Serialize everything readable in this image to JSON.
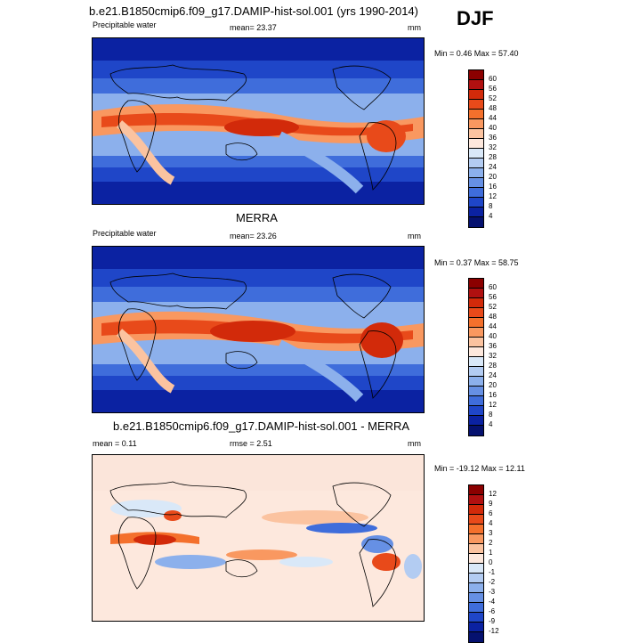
{
  "season": "DJF",
  "panels": [
    {
      "title": "b.e21.B1850cmip6.f09_g17.DAMIP-hist-sol.001 (yrs 1990-2014)",
      "variable": "Precipitable water",
      "mean_text": "mean=  23.37",
      "units": "mm",
      "minmax_text": "Min =   0.46 Max =  57.40",
      "legend_labels": [
        "60",
        "56",
        "52",
        "48",
        "44",
        "40",
        "36",
        "32",
        "28",
        "24",
        "20",
        "16",
        "12",
        "8",
        "4"
      ],
      "legend_colors": [
        "#8b0000",
        "#b01010",
        "#d22a0a",
        "#e84a1a",
        "#f4702c",
        "#f99860",
        "#fbc3a0",
        "#fde8dd",
        "#d9e8f8",
        "#b3ccf2",
        "#8cb0ec",
        "#6690e4",
        "#3f6ddb",
        "#1f46c8",
        "#0b22a2",
        "#05116f"
      ]
    },
    {
      "title": "MERRA",
      "variable": "Precipitable water",
      "mean_text": "mean=  23.26",
      "units": "mm",
      "minmax_text": "Min =   0.37 Max =  58.75",
      "legend_labels": [
        "60",
        "56",
        "52",
        "48",
        "44",
        "40",
        "36",
        "32",
        "28",
        "24",
        "20",
        "16",
        "12",
        "8",
        "4"
      ],
      "legend_colors": [
        "#8b0000",
        "#b01010",
        "#d22a0a",
        "#e84a1a",
        "#f4702c",
        "#f99860",
        "#fbc3a0",
        "#fde8dd",
        "#d9e8f8",
        "#b3ccf2",
        "#8cb0ec",
        "#6690e4",
        "#3f6ddb",
        "#1f46c8",
        "#0b22a2",
        "#05116f"
      ]
    },
    {
      "title": "b.e21.B1850cmip6.f09_g17.DAMIP-hist-sol.001 - MERRA",
      "mean_text": "mean =   0.11",
      "rmse_text": "rmse =   2.51",
      "units": "mm",
      "minmax_text": "Min = -19.12 Max =  12.11",
      "legend_labels": [
        "12",
        "9",
        "6",
        "4",
        "3",
        "2",
        "1",
        "0",
        "-1",
        "-2",
        "-3",
        "-4",
        "-6",
        "-9",
        "-12"
      ],
      "legend_colors": [
        "#8b0000",
        "#b01010",
        "#d22a0a",
        "#e84a1a",
        "#f4702c",
        "#f99860",
        "#fbc3a0",
        "#fde8dd",
        "#d9e8f8",
        "#b3ccf2",
        "#8cb0ec",
        "#6690e4",
        "#3f6ddb",
        "#1f46c8",
        "#0b22a2",
        "#05116f"
      ]
    }
  ]
}
